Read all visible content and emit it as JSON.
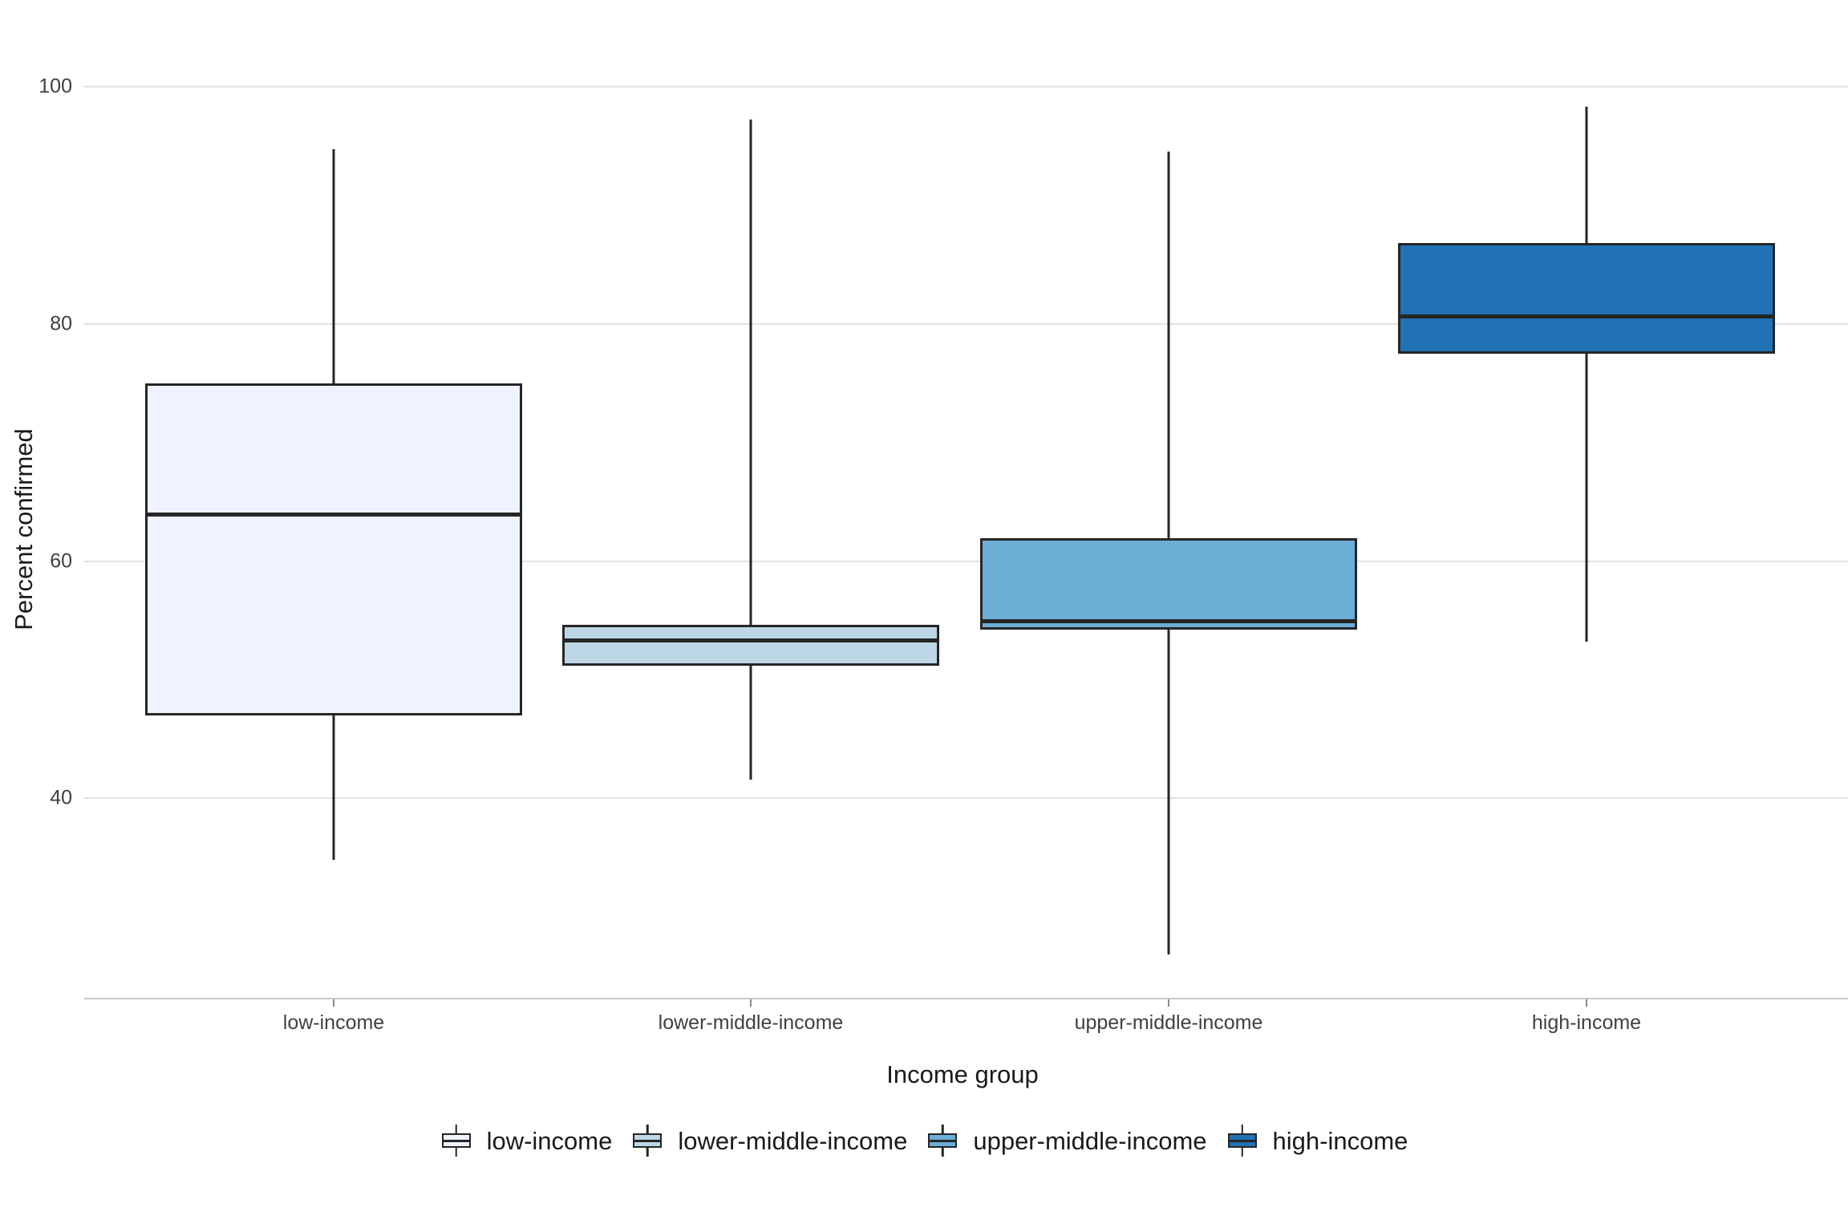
{
  "chart_data": {
    "type": "boxplot",
    "title": "",
    "xlabel": "Income group",
    "ylabel": "Percent confirmed",
    "ylim": [
      23,
      103
    ],
    "yticks": [
      100,
      80,
      60,
      40
    ],
    "grid": "horizontal-major-only",
    "legend_position": "bottom-center",
    "categories": [
      "low-income",
      "lower-middle-income",
      "upper-middle-income",
      "high-income"
    ],
    "series": [
      {
        "name": "low-income",
        "color": "#EFF3FF",
        "stats": {
          "min": 34.8,
          "q1": 47.0,
          "median": 63.9,
          "q3": 75.0,
          "max": 94.7
        }
      },
      {
        "name": "lower-middle-income",
        "color": "#BDD7E7",
        "stats": {
          "min": 41.6,
          "q1": 51.2,
          "median": 53.3,
          "q3": 54.6,
          "max": 97.2
        }
      },
      {
        "name": "upper-middle-income",
        "color": "#6BAED6",
        "stats": {
          "min": 26.8,
          "q1": 54.2,
          "median": 54.9,
          "q3": 61.9,
          "max": 94.5
        }
      },
      {
        "name": "high-income",
        "color": "#2171B5",
        "stats": {
          "min": 53.2,
          "q1": 77.5,
          "median": 80.6,
          "q3": 86.8,
          "max": 98.3
        }
      }
    ],
    "style": {
      "box_border_color": "#262626",
      "gridline_color": "#e3e3e3",
      "axis_line_color": "#c9c9c9",
      "tick_label_color": "#404040",
      "title_color": "#1a1a1a"
    }
  },
  "axes": {
    "x_title": "Income group",
    "y_title": "Percent confirmed"
  },
  "legend": {
    "items": [
      "low-income",
      "lower-middle-income",
      "upper-middle-income",
      "high-income"
    ]
  }
}
